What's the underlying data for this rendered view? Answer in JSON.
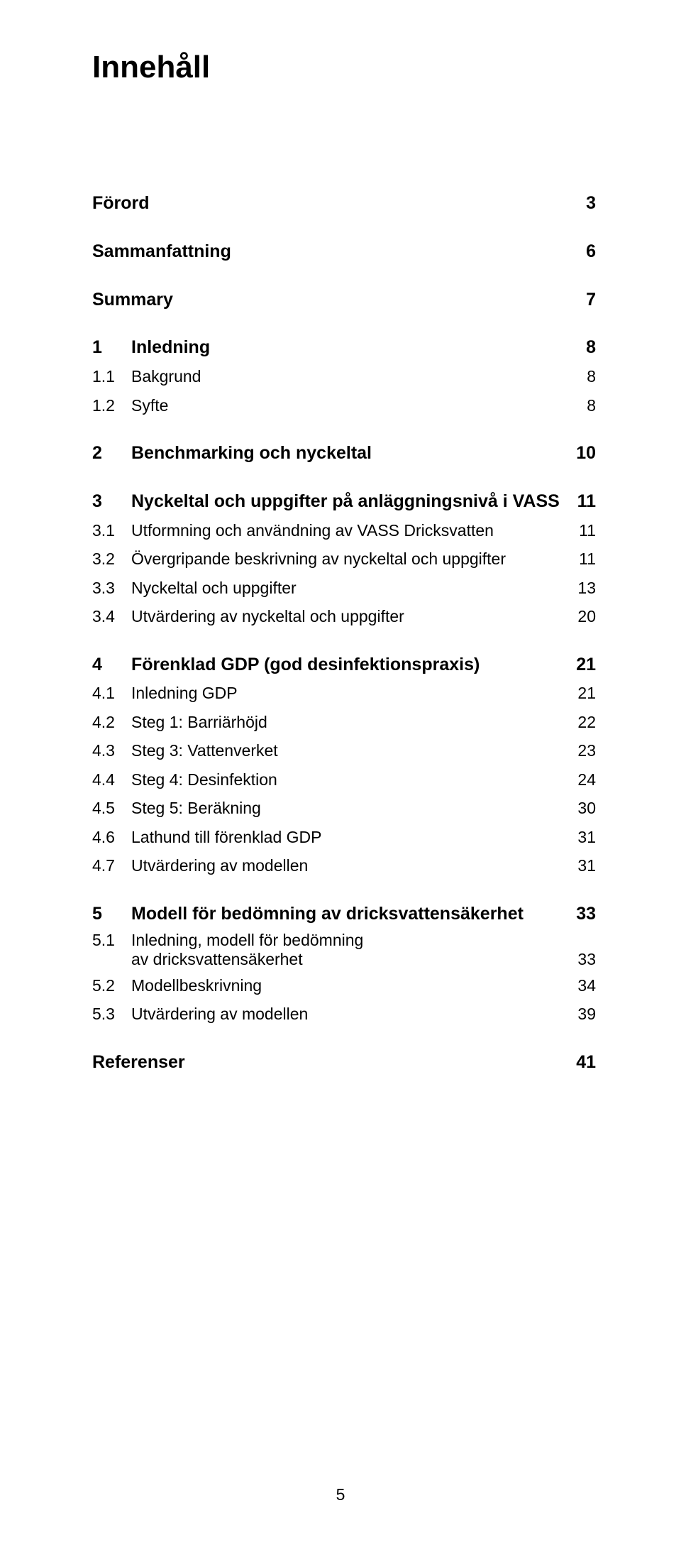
{
  "title": "Innehåll",
  "pageNumber": "5",
  "toc": [
    {
      "level": 0,
      "num": "",
      "text": "Förord",
      "page": "3"
    },
    {
      "level": 0,
      "num": "",
      "text": "Sammanfattning",
      "page": "6"
    },
    {
      "level": 0,
      "num": "",
      "text": "Summary",
      "page": "7"
    },
    {
      "level": 1,
      "num": "1",
      "text": "Inledning",
      "page": "8"
    },
    {
      "level": 2,
      "num": "1.1",
      "text": "Bakgrund",
      "page": "8"
    },
    {
      "level": 2,
      "num": "1.2",
      "text": "Syfte",
      "page": "8"
    },
    {
      "level": 1,
      "num": "2",
      "text": "Benchmarking och nyckeltal",
      "page": "10"
    },
    {
      "level": 1,
      "num": "3",
      "text": "Nyckeltal och uppgifter på anläggningsnivå i VASS",
      "page": "11"
    },
    {
      "level": 2,
      "num": "3.1",
      "text": "Utformning och användning av VASS Dricksvatten",
      "page": "11"
    },
    {
      "level": 2,
      "num": "3.2",
      "text": "Övergripande beskrivning av nyckeltal och uppgifter",
      "page": "11"
    },
    {
      "level": 2,
      "num": "3.3",
      "text": "Nyckeltal och uppgifter",
      "page": "13"
    },
    {
      "level": 2,
      "num": "3.4",
      "text": "Utvärdering av nyckeltal och uppgifter",
      "page": "20"
    },
    {
      "level": 1,
      "num": "4",
      "text": "Förenklad GDP (god desinfektionspraxis)",
      "page": "21"
    },
    {
      "level": 2,
      "num": "4.1",
      "text": "Inledning GDP",
      "page": "21"
    },
    {
      "level": 2,
      "num": "4.2",
      "text": "Steg 1: Barriärhöjd",
      "page": "22"
    },
    {
      "level": 2,
      "num": "4.3",
      "text": "Steg 3: Vattenverket",
      "page": "23"
    },
    {
      "level": 2,
      "num": "4.4",
      "text": "Steg 4: Desinfektion",
      "page": "24"
    },
    {
      "level": 2,
      "num": "4.5",
      "text": "Steg 5: Beräkning",
      "page": "30"
    },
    {
      "level": 2,
      "num": "4.6",
      "text": "Lathund till förenklad GDP",
      "page": "31"
    },
    {
      "level": 2,
      "num": "4.7",
      "text": "Utvärdering av modellen",
      "page": "31"
    },
    {
      "level": 1,
      "num": "5",
      "text": "Modell för bedömning av dricksvattensäkerhet",
      "page": "33"
    },
    {
      "level": 2,
      "num": "5.1",
      "text": "Inledning, modell för bedömning",
      "text2": "av dricksvattensäkerhet",
      "page": "33",
      "multi": true
    },
    {
      "level": 2,
      "num": "5.2",
      "text": "Modellbeskrivning",
      "page": "34"
    },
    {
      "level": 2,
      "num": "5.3",
      "text": "Utvärdering av modellen",
      "page": "39"
    },
    {
      "level": 0,
      "num": "",
      "text": "Referenser",
      "page": "41"
    }
  ]
}
